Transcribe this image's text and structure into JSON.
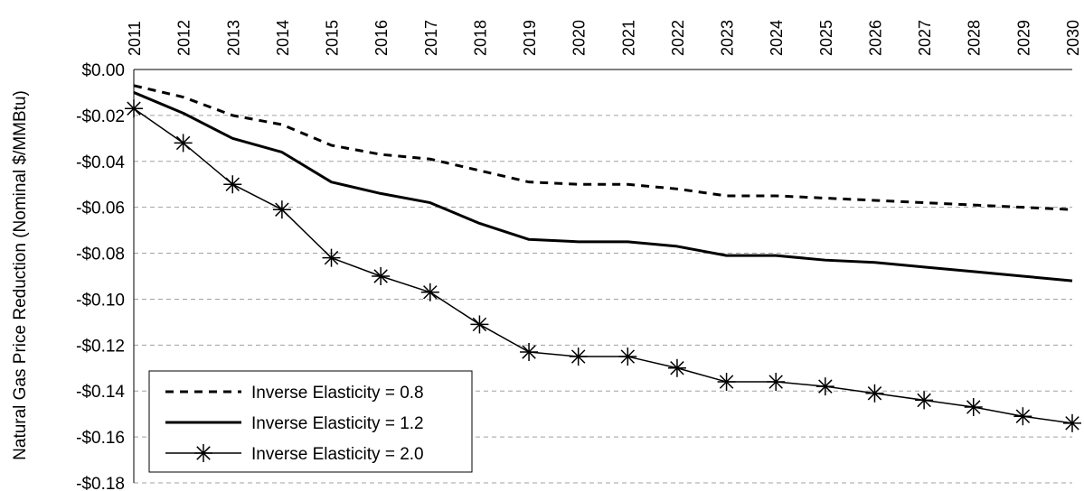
{
  "chart_data": {
    "type": "line",
    "title": "",
    "xlabel": "",
    "ylabel": "Natural Gas Price Reduction (Nominal $/MMBtu)",
    "categories": [
      "2011",
      "2012",
      "2013",
      "2014",
      "2015",
      "2016",
      "2017",
      "2018",
      "2019",
      "2020",
      "2021",
      "2022",
      "2023",
      "2024",
      "2025",
      "2026",
      "2027",
      "2028",
      "2029",
      "2030"
    ],
    "ylim": [
      -0.18,
      0.0
    ],
    "yticks": [
      "$0.00",
      "-$0.02",
      "-$0.04",
      "-$0.06",
      "-$0.08",
      "-$0.10",
      "-$0.12",
      "-$0.14",
      "-$0.16",
      "-$0.18"
    ],
    "grid": "horizontal dashed",
    "legend_position": "bottom-left",
    "x_axis_position": "top",
    "series": [
      {
        "name": "Inverse Elasticity = 0.8",
        "style": "dashed",
        "marker": "none",
        "color": "#000000",
        "values": [
          -0.007,
          -0.012,
          -0.02,
          -0.024,
          -0.033,
          -0.037,
          -0.039,
          -0.044,
          -0.049,
          -0.05,
          -0.05,
          -0.052,
          -0.055,
          -0.055,
          -0.056,
          -0.057,
          -0.058,
          -0.059,
          -0.06,
          -0.061
        ]
      },
      {
        "name": "Inverse Elasticity = 1.2",
        "style": "solid-thick",
        "marker": "none",
        "color": "#000000",
        "values": [
          -0.01,
          -0.019,
          -0.03,
          -0.036,
          -0.049,
          -0.054,
          -0.058,
          -0.067,
          -0.074,
          -0.075,
          -0.075,
          -0.077,
          -0.081,
          -0.081,
          -0.083,
          -0.084,
          -0.086,
          -0.088,
          -0.09,
          -0.092
        ]
      },
      {
        "name": "Inverse Elasticity = 2.0",
        "style": "solid-thin",
        "marker": "asterisk",
        "color": "#000000",
        "values": [
          -0.017,
          -0.032,
          -0.05,
          -0.061,
          -0.082,
          -0.09,
          -0.097,
          -0.111,
          -0.123,
          -0.125,
          -0.125,
          -0.13,
          -0.136,
          -0.136,
          -0.138,
          -0.141,
          -0.144,
          -0.147,
          -0.151,
          -0.154
        ]
      }
    ]
  }
}
